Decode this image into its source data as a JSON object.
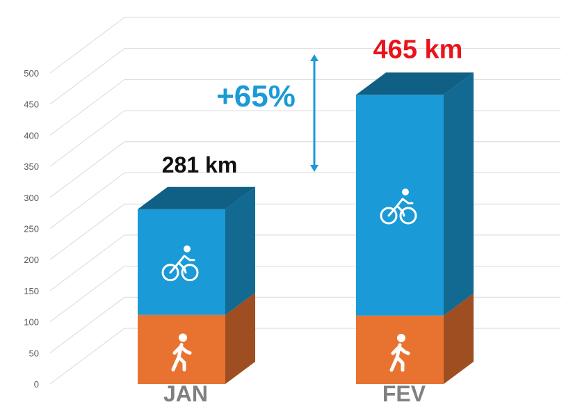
{
  "chart_data": {
    "type": "bar",
    "stacked": true,
    "categories": [
      "JAN",
      "FEV"
    ],
    "series": [
      {
        "icon": "walking-person-icon",
        "color": "#E87331",
        "values": [
          111,
          110
        ]
      },
      {
        "icon": "cyclist-icon",
        "color": "#1A9AD6",
        "values": [
          170,
          355
        ]
      }
    ],
    "totals": [
      "281 km",
      "465 km"
    ],
    "total_colors": [
      "#111111",
      "#E8141B"
    ],
    "change_label": "+65%",
    "change_color": "#1A9AD6",
    "ylim": [
      0,
      500
    ],
    "yticks": [
      0,
      50,
      100,
      150,
      200,
      250,
      300,
      350,
      400,
      450,
      500
    ],
    "grid": true,
    "title": "",
    "xlabel": "",
    "ylabel": ""
  }
}
